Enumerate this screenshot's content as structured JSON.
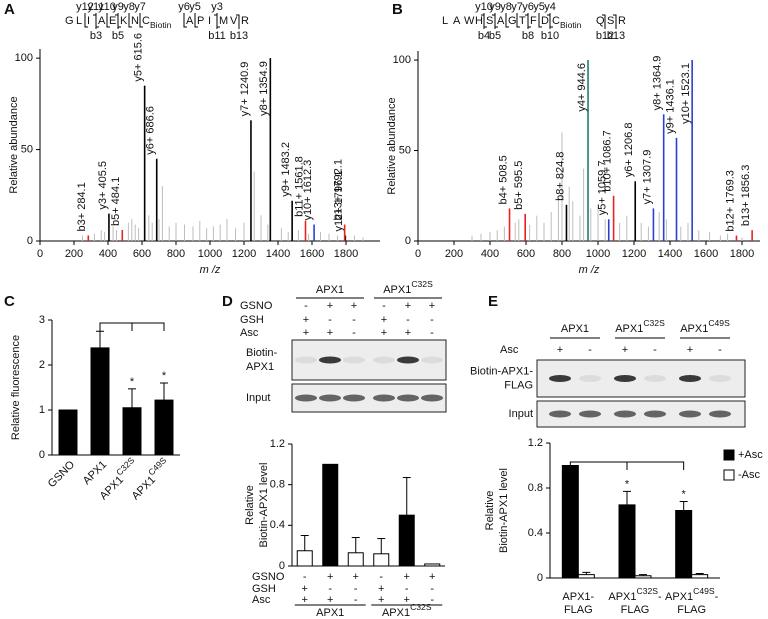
{
  "chart_data": [
    {
      "type": "spectrum",
      "panel": "A",
      "residues": [
        "G",
        "L",
        "I",
        "A",
        "E",
        "K",
        "N",
        "CBiotin",
        "A",
        "P",
        "I",
        "M",
        "V",
        "R"
      ],
      "top_ions": [
        "y12",
        "y11",
        "y10",
        "y9",
        "y8",
        "y7",
        "y6",
        "y5",
        "y3"
      ],
      "bottom_ions": [
        "b3",
        "b5",
        "b11",
        "b13"
      ],
      "modification_color": "#e8231f",
      "xlabel": "m /z",
      "ylabel": "Relative abundance",
      "xlim": [
        0,
        2000
      ],
      "xticks": [
        0,
        200,
        400,
        600,
        800,
        1000,
        1200,
        1400,
        1600,
        1800
      ],
      "ylim": [
        0,
        105
      ],
      "yticks": [
        0,
        50,
        100
      ],
      "series": [
        {
          "color": "#bdbdbd",
          "x": [
            250,
            320,
            360,
            380,
            430,
            450,
            520,
            540,
            560,
            580,
            640,
            660,
            700,
            720,
            760,
            800,
            850,
            900,
            940,
            980,
            1020,
            1060,
            1100,
            1150,
            1200,
            1260,
            1300,
            1340,
            1420,
            1460,
            1520,
            1580,
            1650,
            1700,
            1750,
            1850,
            1900
          ],
          "values": [
            3,
            4,
            6,
            5,
            8,
            6,
            10,
            12,
            9,
            7,
            14,
            10,
            12,
            30,
            8,
            10,
            9,
            8,
            11,
            7,
            8,
            9,
            12,
            7,
            10,
            38,
            14,
            9,
            7,
            5,
            6,
            4,
            5,
            4,
            3,
            3,
            2
          ]
        },
        {
          "color": "#000000",
          "x": [
            405.5,
            615.6,
            686.6,
            1240.9,
            1354.9,
            1483.2,
            1796.1
          ],
          "values": [
            15,
            85,
            45,
            66,
            100,
            22,
            3
          ],
          "labels": [
            "y3+ 405.5",
            "y5+ 615.6",
            "y6+ 686.6",
            "y7+ 1240.9",
            "y8+ 1354.9",
            "y9+ 1483.2",
            "y12+ 1796.1"
          ]
        },
        {
          "color": "#e8231f",
          "x": [
            284.1,
            484.1,
            1561.8,
            1792.1
          ],
          "values": [
            3,
            6,
            11,
            9
          ],
          "labels": [
            "b3+ 284.1",
            "b5+ 484.1",
            "b11+ 1561.8",
            "b13+ 1792.1"
          ]
        },
        {
          "color": "#2b3fd6",
          "x": [
            1612.3
          ],
          "values": [
            9
          ],
          "labels": [
            "y10+ 1612.3"
          ]
        }
      ]
    },
    {
      "type": "spectrum",
      "panel": "B",
      "residues": [
        "L",
        "A",
        "W",
        "H",
        "S",
        "A",
        "G",
        "T",
        "F",
        "D",
        "CBiotin",
        "Q",
        "S",
        "R"
      ],
      "top_ions": [
        "y10",
        "y9",
        "y8",
        "y7",
        "y6",
        "y5",
        "y4"
      ],
      "bottom_ions": [
        "b4",
        "b5",
        "b8",
        "b10",
        "b12",
        "b13"
      ],
      "modification_color": "#e8231f",
      "xlabel": "m /z",
      "ylabel": "Relative abundance",
      "xlim": [
        0,
        1900
      ],
      "xticks": [
        0,
        200,
        400,
        600,
        800,
        1000,
        1200,
        1400,
        1600,
        1800
      ],
      "ylim": [
        0,
        105
      ],
      "yticks": [
        0,
        50,
        100
      ],
      "series": [
        {
          "color": "#bdbdbd",
          "x": [
            300,
            350,
            400,
            440,
            480,
            540,
            560,
            620,
            660,
            700,
            740,
            780,
            800,
            840,
            860,
            900,
            920,
            960,
            1000,
            1040,
            1120,
            1160,
            1240,
            1280,
            1340,
            1380,
            1460,
            1500,
            1560,
            1620,
            1680,
            1720,
            1800
          ],
          "values": [
            3,
            4,
            5,
            6,
            8,
            10,
            12,
            9,
            14,
            10,
            16,
            24,
            60,
            30,
            22,
            14,
            40,
            18,
            20,
            12,
            10,
            14,
            10,
            8,
            16,
            12,
            8,
            10,
            6,
            5,
            3,
            4,
            2
          ]
        },
        {
          "color": "#000000",
          "x": [
            824.8,
            1206.8
          ],
          "values": [
            20,
            33
          ],
          "labels": [
            "b8+ 824.8",
            "y6+ 1206.8"
          ]
        },
        {
          "color": "#e8231f",
          "x": [
            508.5,
            595.5,
            1086.7,
            1769.3,
            1856.3
          ],
          "values": [
            18,
            15,
            25,
            3,
            6
          ],
          "labels": [
            "b4+ 508.5",
            "b5+ 595.5",
            "b10+ 1086.7",
            "b12+ 1769.3",
            "b13+ 1856.3"
          ]
        },
        {
          "color": "#1f7f73",
          "x": [
            944.6
          ],
          "values": [
            100
          ],
          "labels": [
            "y4+ 944.6"
          ]
        },
        {
          "color": "#2b3fd6",
          "x": [
            1059.7,
            1307.9,
            1364.9,
            1436.1,
            1523.1
          ],
          "values": [
            12,
            18,
            70,
            57,
            100
          ],
          "labels": [
            "y5+ 1059.7",
            "y7+ 1307.9",
            "y8+ 1364.9",
            "y9+ 1436.1",
            "y10+ 1523.1"
          ]
        }
      ]
    },
    {
      "type": "bar",
      "panel": "C",
      "ylabel": "Relative fluorescence",
      "categories": [
        "GSNO",
        "APX1",
        "APX1C32S",
        "APX1C49S"
      ],
      "series": [
        {
          "color": "#000000",
          "values": [
            1,
            2.38,
            1.05,
            1.22
          ],
          "errors": [
            null,
            0.37,
            0.42,
            0.38
          ],
          "significance": [
            null,
            null,
            "*",
            "*"
          ]
        }
      ],
      "ylim": [
        0,
        3
      ],
      "yticks": [
        0,
        1,
        2,
        3
      ]
    },
    {
      "type": "bar",
      "panel": "D",
      "ylabel": [
        "Relative",
        "Biotin-APX1 level"
      ],
      "series": [
        {
          "colors": [
            "#ffffff",
            "#000000",
            "#ffffff",
            "#ffffff",
            "#000000",
            "#ffffff"
          ],
          "values": [
            0.15,
            1,
            0.13,
            0.12,
            0.5,
            0.02
          ],
          "errors": [
            0.15,
            null,
            0.15,
            0.15,
            0.37,
            null
          ]
        }
      ],
      "conditions": [
        {
          "name": "GSNO",
          "values": [
            "-",
            "+",
            "+",
            "-",
            "+",
            "+"
          ]
        },
        {
          "name": "GSH",
          "values": [
            "+",
            "-",
            "-",
            "+",
            "-",
            "-"
          ]
        },
        {
          "name": "Asc",
          "values": [
            "+",
            "+",
            "-",
            "+",
            "+",
            "-"
          ]
        }
      ],
      "groups": [
        "APX1",
        "APX1C32S"
      ],
      "ylim": [
        0,
        1.2
      ],
      "yticks": [
        0,
        0.4,
        0.8,
        1.2
      ]
    },
    {
      "type": "bar",
      "panel": "E",
      "ylabel": [
        "Relative",
        "Biotin-APX1 level"
      ],
      "categories": [
        [
          "APX1-",
          "FLAG"
        ],
        [
          "APX1C32S-",
          "FLAG"
        ],
        [
          "APX1C49S-",
          "FLAG"
        ]
      ],
      "series": [
        {
          "name": "+Asc",
          "color": "#000000",
          "values": [
            1,
            0.65,
            0.6
          ],
          "errors": [
            null,
            0.12,
            0.08
          ],
          "significance": [
            null,
            "*",
            "*"
          ]
        },
        {
          "name": "-Asc",
          "color": "#ffffff",
          "values": [
            0.03,
            0.02,
            0.03
          ],
          "errors": [
            0.02,
            0.01,
            0.01
          ]
        }
      ],
      "legend": "right",
      "ylim": [
        0,
        1.2
      ],
      "yticks": [
        0,
        0.4,
        0.8,
        1.2
      ]
    }
  ],
  "blots": [
    {
      "groups": [
        "APX1",
        "APX1C32S"
      ],
      "conditions": [
        {
          "name": "GSNO",
          "values": [
            "-",
            "+",
            "+",
            "-",
            "+",
            "+"
          ]
        },
        {
          "name": "GSH",
          "values": [
            "+",
            "-",
            "-",
            "+",
            "-",
            "-"
          ]
        },
        {
          "name": "Asc",
          "values": [
            "+",
            "+",
            "-",
            "+",
            "+",
            "-"
          ]
        }
      ],
      "rows": [
        [
          "Biotin-",
          "APX1"
        ],
        [
          "Input"
        ]
      ]
    },
    {
      "groups": [
        "APX1",
        "APX1C32S",
        "APX1C49S"
      ],
      "conditions": [
        {
          "name": "Asc",
          "values": [
            "+",
            "-",
            "+",
            "-",
            "+",
            "-"
          ]
        }
      ],
      "rows": [
        [
          "Biotin-APX1-",
          "FLAG"
        ],
        [
          "Input"
        ]
      ]
    }
  ]
}
